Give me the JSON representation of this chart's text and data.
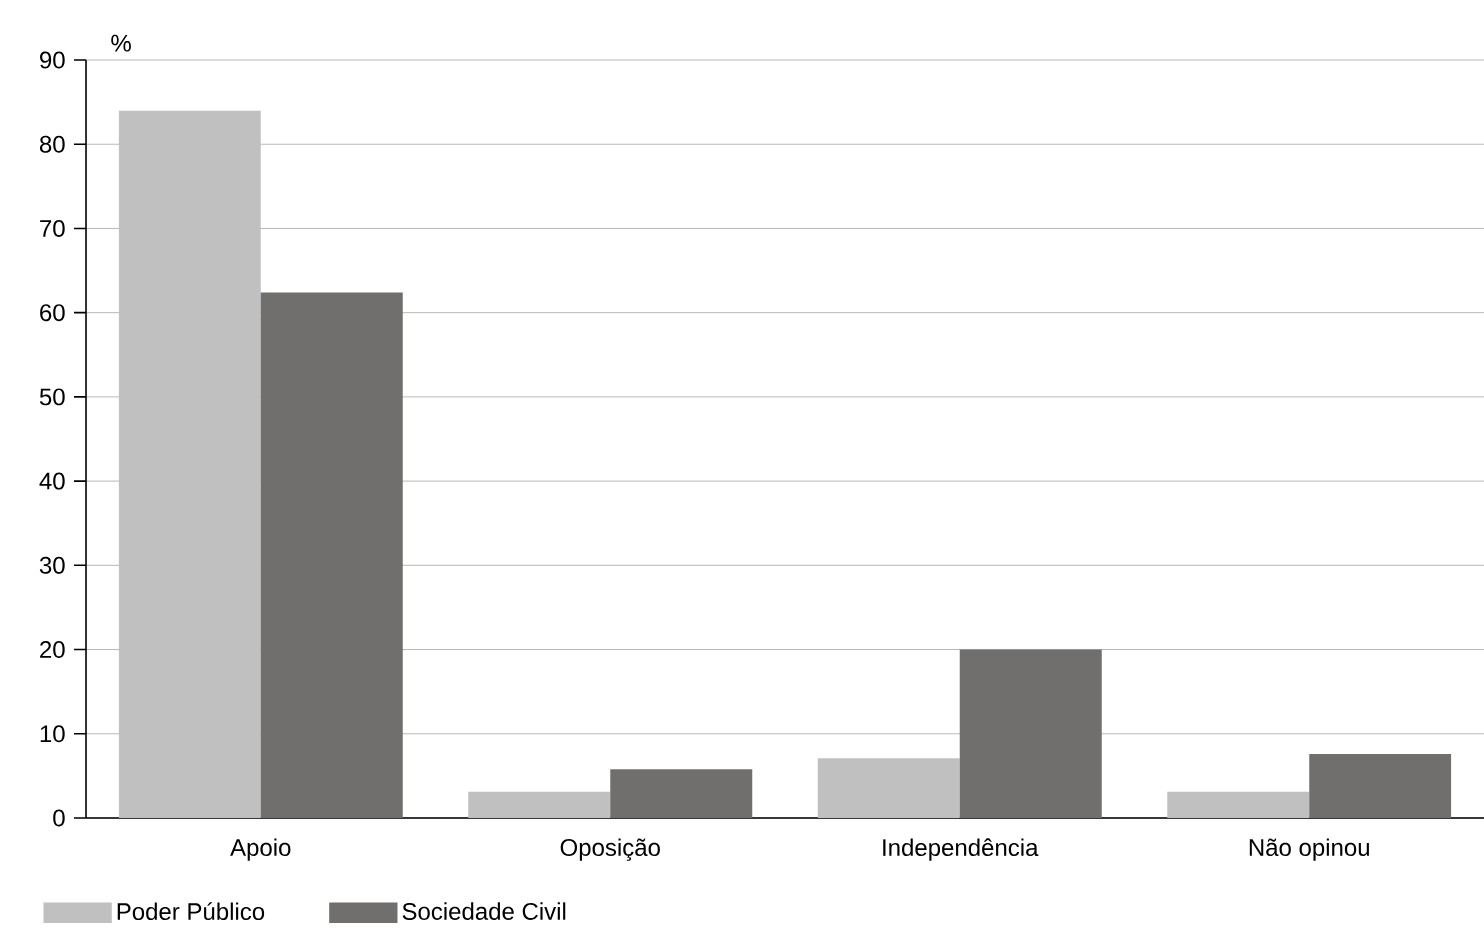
{
  "chart_data": {
    "type": "bar",
    "ylabel": "%",
    "categories": [
      "Apoio",
      "Oposição",
      "Independência",
      "Não opinou"
    ],
    "series": [
      {
        "name": "Poder Público",
        "color": "#c0c0c0",
        "values": [
          84,
          3.1,
          7.1,
          3.1
        ]
      },
      {
        "name": "Sociedade Civil",
        "color": "#706f6d",
        "values": [
          62.4,
          5.8,
          20,
          7.6
        ]
      }
    ],
    "ylim": [
      0,
      90
    ],
    "yticks": [
      0,
      10,
      20,
      30,
      40,
      50,
      60,
      70,
      80,
      90
    ],
    "grid": "y",
    "legend": "bottom left"
  }
}
